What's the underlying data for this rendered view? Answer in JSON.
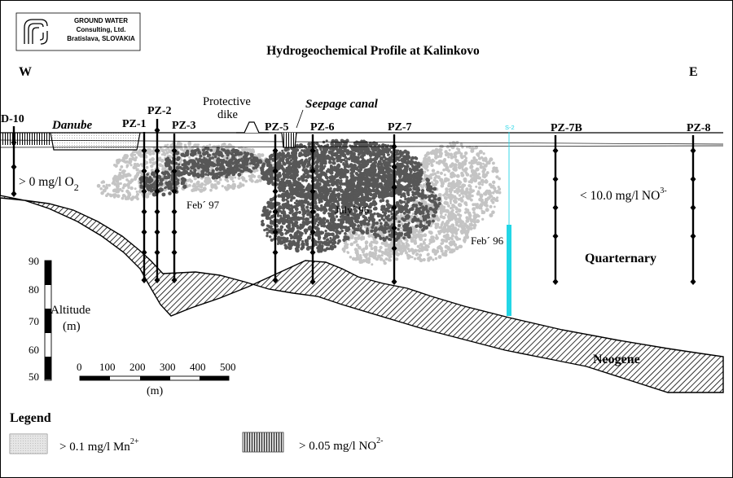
{
  "logo": {
    "line1": "GROUND WATER",
    "line2": "Consulting, Ltd.",
    "line3": "Bratislava, SLOVAKIA"
  },
  "title": "Hydrogeochemical Profile at Kalinkovo",
  "directions": {
    "west": "W",
    "east": "E"
  },
  "labels": {
    "danube": "Danube",
    "protective_1": "Protective",
    "protective_2": "dike",
    "seepage": "Seepage canal",
    "s2": "S-2",
    "o2_text": "> 0 mg/l  O",
    "o2_sub": "2",
    "no3_text": "< 10.0 mg/l  NO",
    "no3_sup": "3-",
    "feb97": "Feb´ 97",
    "july96": "July´ 96",
    "feb96": "Feb´ 96",
    "quarternary": "Quarternary",
    "neogene": "Neogene"
  },
  "wells": [
    {
      "name": "D-10"
    },
    {
      "name": "PZ-1"
    },
    {
      "name": "PZ-2"
    },
    {
      "name": "PZ-3"
    },
    {
      "name": "PZ-5"
    },
    {
      "name": "PZ-6"
    },
    {
      "name": "PZ-7"
    },
    {
      "name": "PZ-7B"
    },
    {
      "name": "PZ-8"
    }
  ],
  "altitude": {
    "title_1": "Altitude",
    "title_2": "(m)",
    "ticks": [
      "90",
      "80",
      "70",
      "60",
      "50"
    ]
  },
  "scale": {
    "ticks": [
      "0",
      "100",
      "200",
      "300",
      "400",
      "500"
    ],
    "unit": "(m)"
  },
  "legend": {
    "title": "Legend",
    "mn_text": "> 0.1 mg/l  Mn",
    "mn_sup": "2+",
    "no2_text": "> 0.05 mg/l  NO",
    "no2_sup": "2-"
  },
  "colors": {
    "light_plume": "#c4c4c4",
    "dark_plume": "#575757",
    "s2_well": "#22d6e6"
  }
}
